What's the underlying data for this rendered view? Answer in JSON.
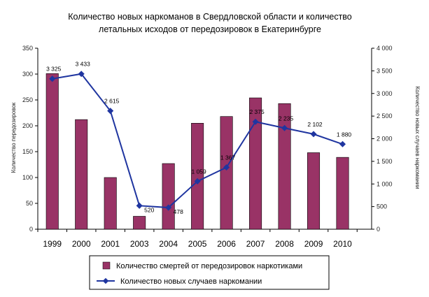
{
  "chart_data": {
    "type": "bar",
    "title_lines": [
      "Количество новых наркоманов в Свердловской области и количество",
      "летальных исходов от передозировок в Екатеринбурге"
    ],
    "categories": [
      "1999",
      "2000",
      "2001",
      "2003",
      "2004",
      "2005",
      "2006",
      "2007",
      "2008",
      "2009",
      "2010"
    ],
    "series": [
      {
        "name": "Количество смертей от передозировок наркотиками",
        "type": "bar",
        "axis": "left",
        "color": "#993366",
        "values": [
          301,
          212,
          100,
          25,
          127,
          205,
          218,
          254,
          243,
          148,
          139
        ]
      },
      {
        "name": "Количество новых случаев наркомании",
        "type": "line",
        "axis": "right",
        "color": "#1F35A0",
        "values": [
          3325,
          3433,
          2615,
          520,
          478,
          1059,
          1367,
          2375,
          2235,
          2102,
          1880
        ],
        "labels": [
          "3 325",
          "3 433",
          "2 615",
          "520",
          "478",
          "1 059",
          "1 367",
          "2 375",
          "2 235",
          "2 102",
          "1 880"
        ]
      }
    ],
    "left_axis": {
      "label": "Количество передозировок",
      "ylim": [
        0,
        350
      ],
      "ticks": [
        "0",
        "50",
        "100",
        "150",
        "200",
        "250",
        "300",
        "350"
      ]
    },
    "right_axis": {
      "label": "Количество новых случаев наркомании",
      "ylim": [
        0,
        4000
      ],
      "ticks": [
        "0",
        "500",
        "1 000",
        "1 500",
        "2 000",
        "2 500",
        "3 000",
        "3 500",
        "4 000"
      ]
    },
    "legend_position": "bottom",
    "grid": false
  }
}
